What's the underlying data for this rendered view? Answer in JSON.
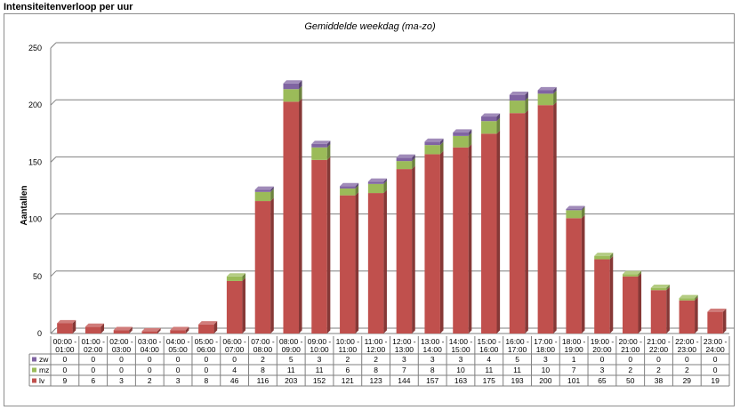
{
  "page": {
    "title": "Intensiteitenverloop per uur"
  },
  "chart_data": {
    "type": "bar",
    "stacked": true,
    "title": "Gemiddelde weekdag (ma-zo)",
    "xlabel": "",
    "ylabel": "Aantallen",
    "ylim": [
      0,
      250
    ],
    "yticks": [
      0,
      50,
      100,
      150,
      200,
      250
    ],
    "grid": true,
    "legend": "data-table-left",
    "categories": [
      [
        "00:00 -",
        "01:00"
      ],
      [
        "01:00 -",
        "02:00"
      ],
      [
        "02:00 -",
        "03:00"
      ],
      [
        "03:00 -",
        "04:00"
      ],
      [
        "04:00 -",
        "05:00"
      ],
      [
        "05:00 -",
        "06:00"
      ],
      [
        "06:00 -",
        "07:00"
      ],
      [
        "07:00 -",
        "08:00"
      ],
      [
        "08:00 -",
        "09:00"
      ],
      [
        "09:00 -",
        "10:00"
      ],
      [
        "10:00 -",
        "11:00"
      ],
      [
        "11:00 -",
        "12:00"
      ],
      [
        "12:00 -",
        "13:00"
      ],
      [
        "13:00 -",
        "14:00"
      ],
      [
        "14:00 -",
        "15:00"
      ],
      [
        "15:00 -",
        "16:00"
      ],
      [
        "16:00 -",
        "17:00"
      ],
      [
        "17:00 -",
        "18:00"
      ],
      [
        "18:00 -",
        "19:00"
      ],
      [
        "19:00 -",
        "20:00"
      ],
      [
        "20:00 -",
        "21:00"
      ],
      [
        "21:00 -",
        "22:00"
      ],
      [
        "22:00 -",
        "23:00"
      ],
      [
        "23:00 -",
        "24:00"
      ]
    ],
    "series": [
      {
        "name": "lv",
        "color": "#c0504d",
        "values": [
          9,
          6,
          3,
          2,
          3,
          8,
          46,
          116,
          203,
          152,
          121,
          123,
          144,
          157,
          163,
          175,
          193,
          200,
          101,
          65,
          50,
          38,
          29,
          19
        ]
      },
      {
        "name": "mz",
        "color": "#9bbb59",
        "values": [
          0,
          0,
          0,
          0,
          0,
          0,
          4,
          8,
          11,
          11,
          6,
          8,
          7,
          8,
          10,
          11,
          11,
          10,
          7,
          3,
          2,
          2,
          2,
          0
        ]
      },
      {
        "name": "zw",
        "color": "#8064a2",
        "values": [
          0,
          0,
          0,
          0,
          0,
          0,
          0,
          2,
          5,
          3,
          2,
          2,
          3,
          3,
          3,
          4,
          5,
          3,
          1,
          0,
          0,
          0,
          0,
          0
        ]
      }
    ],
    "table_order": [
      "zw",
      "mz",
      "lv"
    ]
  }
}
